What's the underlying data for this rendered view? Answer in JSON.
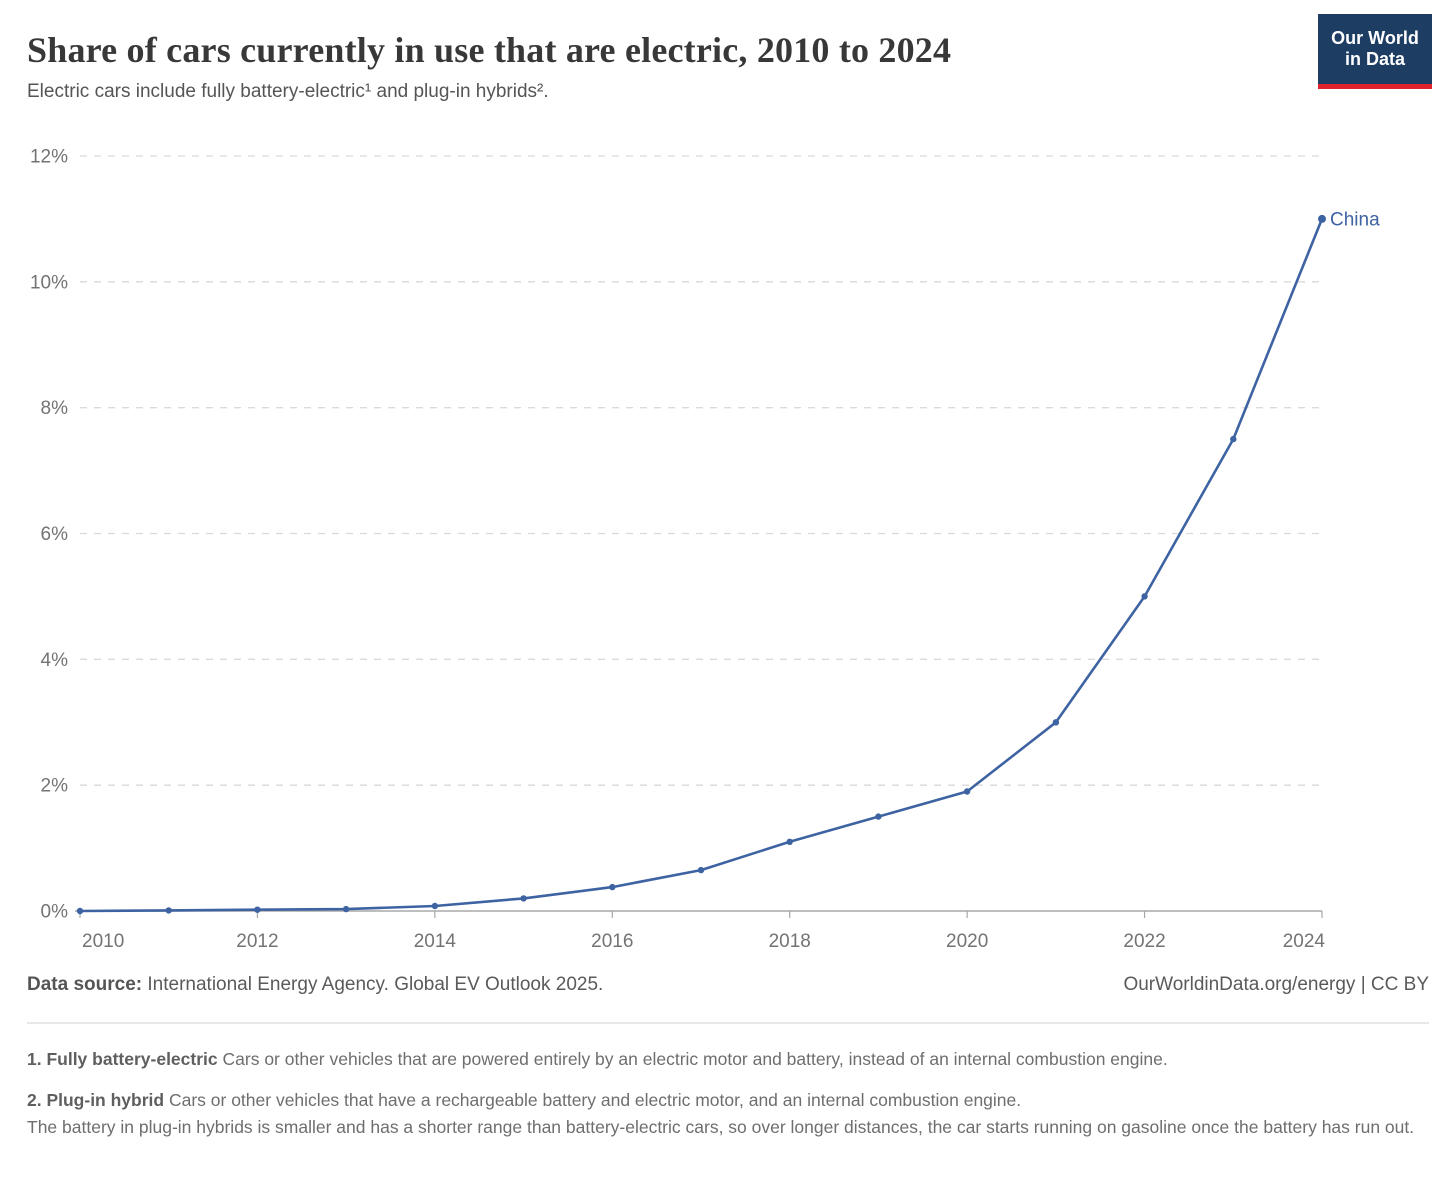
{
  "header": {
    "title": "Share of cars currently in use that are electric, 2010 to 2024",
    "subtitle": "Electric cars include fully battery-electric¹ and plug-in hybrids².",
    "logo": {
      "line1": "Our World",
      "line2": "in Data"
    }
  },
  "chart_data": {
    "type": "line",
    "title": "Share of cars currently in use that are electric, 2010 to 2024",
    "x": [
      2010,
      2011,
      2012,
      2013,
      2014,
      2015,
      2016,
      2017,
      2018,
      2019,
      2020,
      2021,
      2022,
      2023,
      2024
    ],
    "series": [
      {
        "name": "China",
        "color": "#3e63a2",
        "values": [
          0.0,
          0.01,
          0.02,
          0.03,
          0.08,
          0.2,
          0.38,
          0.65,
          1.1,
          1.5,
          1.9,
          3.0,
          5.0,
          7.5,
          11.0
        ]
      }
    ],
    "xlabel": "",
    "ylabel": "",
    "xlim": [
      2010,
      2024
    ],
    "ylim": [
      0,
      12
    ],
    "yticks": [
      0,
      2,
      4,
      6,
      8,
      10,
      12
    ],
    "ytick_suffix": "%",
    "xticks": [
      2010,
      2012,
      2014,
      2016,
      2018,
      2020,
      2022,
      2024
    ],
    "grid": "horizontal-dashed",
    "legend_position": "end-of-line-label",
    "colors": {
      "gridline": "#dadada",
      "zeroline": "#a8a8a8",
      "tick": "#a8a8a8",
      "axis_text": "#737373"
    }
  },
  "footer": {
    "datasource_label": "Data source:",
    "datasource_value": "International Energy Agency. Global EV Outlook 2025.",
    "attribution": "OurWorldinData.org/energy | CC BY"
  },
  "footnotes": [
    {
      "lead": "1. Fully battery-electric",
      "rest": "Cars or other vehicles that are powered entirely by an electric motor and battery, instead of an internal combustion engine.",
      "cont": ""
    },
    {
      "lead": "2. Plug-in hybrid",
      "rest": "Cars or other vehicles that have a rechargeable battery and electric motor, and an internal combustion engine.",
      "cont": "The battery in plug-in hybrids is smaller and has a shorter range than battery-electric cars, so over longer distances, the car starts running on gasoline once the battery has run out."
    }
  ]
}
